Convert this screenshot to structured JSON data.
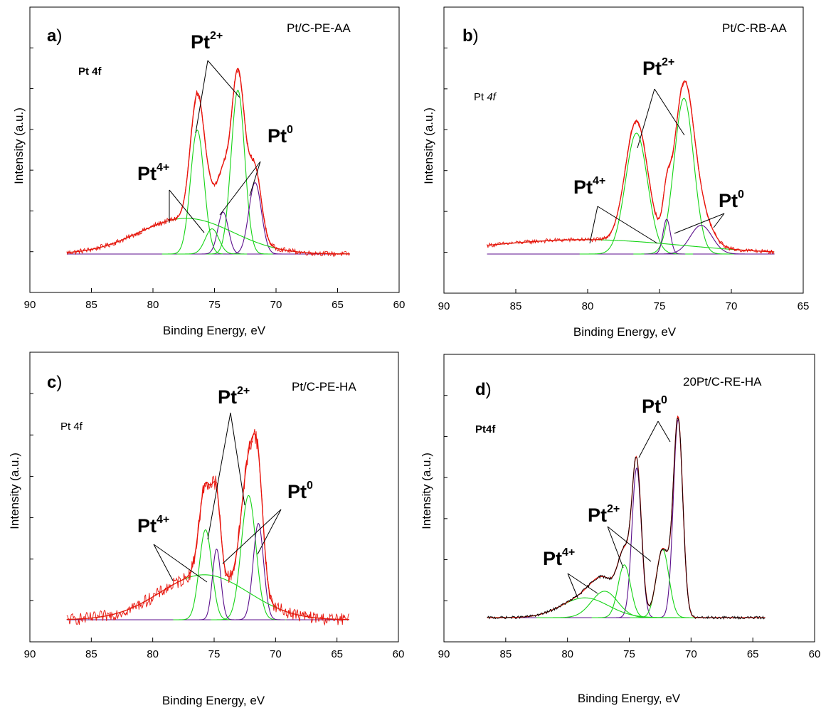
{
  "figure": {
    "colors": {
      "experimental": "#e8140c",
      "envelope": "#e8140c",
      "raw_d": "#000000",
      "component_green": "#16d416",
      "component_purple": "#5b0f8c",
      "broad_background": "#16d416",
      "baseline": "#5b0f8c"
    }
  },
  "chart_data": [
    {
      "id": "a",
      "type": "line",
      "panel_letter": "a",
      "sample_label": "Pt/C-PE-AA",
      "region_label": "Pt 4f",
      "region_style": "bold",
      "xlabel": "Binding Energy, eV",
      "ylabel": "Intensity (a.u.)",
      "xlim": [
        90,
        60
      ],
      "x_ticks": [
        90,
        85,
        80,
        75,
        70,
        65,
        60
      ],
      "x_range": [
        87,
        64
      ],
      "noise": 0.012,
      "peak_labels": [
        {
          "base": "Pt",
          "sup": "2+"
        },
        {
          "base": "Pt",
          "sup": "0"
        },
        {
          "base": "Pt",
          "sup": "4+"
        }
      ],
      "components": [
        {
          "name": "Pt 4f7/2 Pt2+",
          "center": 73.1,
          "fwhm": 1.3,
          "height": 0.78,
          "color": "green"
        },
        {
          "name": "Pt 4f5/2 Pt2+",
          "center": 76.4,
          "fwhm": 1.3,
          "height": 0.59,
          "color": "green"
        },
        {
          "name": "Pt 4f7/2 Pt0",
          "center": 71.7,
          "fwhm": 1.2,
          "height": 0.34,
          "color": "purple"
        },
        {
          "name": "Pt 4f5/2 Pt0",
          "center": 74.3,
          "fwhm": 1.0,
          "height": 0.2,
          "color": "purple"
        },
        {
          "name": "Pt 4f Pt4+",
          "center": 75.2,
          "fwhm": 1.3,
          "height": 0.12,
          "color": "green"
        },
        {
          "name": "Broad background",
          "center": 77.3,
          "fwhm": 9.0,
          "height": 0.17,
          "color": "green"
        }
      ]
    },
    {
      "id": "b",
      "type": "line",
      "panel_letter": "b",
      "sample_label": "Pt/C-RB-AA",
      "region_label": "Pt ",
      "region_label_f": "4f",
      "region_style": "italic-f",
      "xlabel": "Binding Energy, eV",
      "ylabel": "Intensity (a.u.)",
      "xlim": [
        90,
        65
      ],
      "x_ticks": [
        90,
        85,
        80,
        75,
        70,
        65
      ],
      "x_range": [
        87,
        67
      ],
      "noise": 0.01,
      "peak_labels": [
        {
          "base": "Pt",
          "sup": "2+"
        },
        {
          "base": "Pt",
          "sup": "4+"
        },
        {
          "base": "Pt",
          "sup": "0"
        }
      ],
      "components": [
        {
          "name": "Pt 4f7/2 Pt2+",
          "center": 73.3,
          "fwhm": 1.6,
          "height": 0.76,
          "color": "green"
        },
        {
          "name": "Pt 4f5/2 Pt2+",
          "center": 76.6,
          "fwhm": 1.8,
          "height": 0.59,
          "color": "green"
        },
        {
          "name": "Pt 4f7/2 Pt0",
          "center": 72.1,
          "fwhm": 1.8,
          "height": 0.14,
          "color": "purple"
        },
        {
          "name": "Pt 4f5/2 Pt0",
          "center": 74.5,
          "fwhm": 0.6,
          "height": 0.17,
          "color": "purple"
        },
        {
          "name": "Broad background",
          "center": 80.2,
          "fwhm": 16.0,
          "height": 0.07,
          "color": "green"
        }
      ]
    },
    {
      "id": "c",
      "type": "line",
      "panel_letter": "c",
      "sample_label": "Pt/C-PE-HA",
      "region_label": "Pt 4f",
      "region_style": "plain",
      "xlabel": "Binding Energy, eV",
      "ylabel": "Intensity (a.u.)",
      "xlim": [
        90,
        60
      ],
      "x_ticks": [
        90,
        85,
        80,
        75,
        70,
        65,
        60
      ],
      "x_range": [
        87,
        64
      ],
      "noise": 0.028,
      "peak_labels": [
        {
          "base": "Pt",
          "sup": "2+"
        },
        {
          "base": "Pt",
          "sup": "4+"
        },
        {
          "base": "Pt",
          "sup": "0"
        }
      ],
      "components": [
        {
          "name": "Pt 4f7/2 Pt2+",
          "center": 72.2,
          "fwhm": 1.4,
          "height": 0.58,
          "color": "green"
        },
        {
          "name": "Pt 4f5/2 Pt2+",
          "center": 75.7,
          "fwhm": 1.2,
          "height": 0.42,
          "color": "green"
        },
        {
          "name": "Pt 4f7/2 Pt0",
          "center": 71.4,
          "fwhm": 1.0,
          "height": 0.45,
          "color": "purple"
        },
        {
          "name": "Pt 4f5/2 Pt0",
          "center": 74.8,
          "fwhm": 0.8,
          "height": 0.33,
          "color": "purple"
        },
        {
          "name": "Broad background",
          "center": 75.8,
          "fwhm": 8.5,
          "height": 0.21,
          "color": "green"
        }
      ]
    },
    {
      "id": "d",
      "type": "line",
      "panel_letter": "d",
      "sample_label": "20Pt/C-RE-HA",
      "region_label": "Pt4f",
      "region_style": "bold",
      "xlabel": "Binding Energy, eV",
      "ylabel": "Intensity (a.u.)",
      "xlim": [
        90,
        60
      ],
      "x_ticks": [
        90,
        85,
        80,
        75,
        70,
        65,
        60
      ],
      "x_range": [
        86.5,
        64
      ],
      "noise": 0.006,
      "peak_labels": [
        {
          "base": "Pt",
          "sup": "0"
        },
        {
          "base": "Pt",
          "sup": "2+"
        },
        {
          "base": "Pt",
          "sup": "4+"
        }
      ],
      "components": [
        {
          "name": "Pt 4f7/2 Pt0",
          "center": 71.05,
          "fwhm": 0.9,
          "height": 0.9,
          "color": "purple"
        },
        {
          "name": "Pt 4f5/2 Pt0",
          "center": 74.4,
          "fwhm": 0.9,
          "height": 0.68,
          "color": "purple"
        },
        {
          "name": "Pt 4f7/2 Pt2+",
          "center": 72.3,
          "fwhm": 1.2,
          "height": 0.31,
          "color": "green"
        },
        {
          "name": "Pt 4f5/2 Pt2+",
          "center": 75.4,
          "fwhm": 1.2,
          "height": 0.24,
          "color": "green"
        },
        {
          "name": "Pt 4f Pt4+ a",
          "center": 77.0,
          "fwhm": 2.5,
          "height": 0.12,
          "color": "green"
        },
        {
          "name": "Pt 4f Pt4+ b",
          "center": 78.6,
          "fwhm": 4.5,
          "height": 0.09,
          "color": "green"
        }
      ]
    }
  ]
}
